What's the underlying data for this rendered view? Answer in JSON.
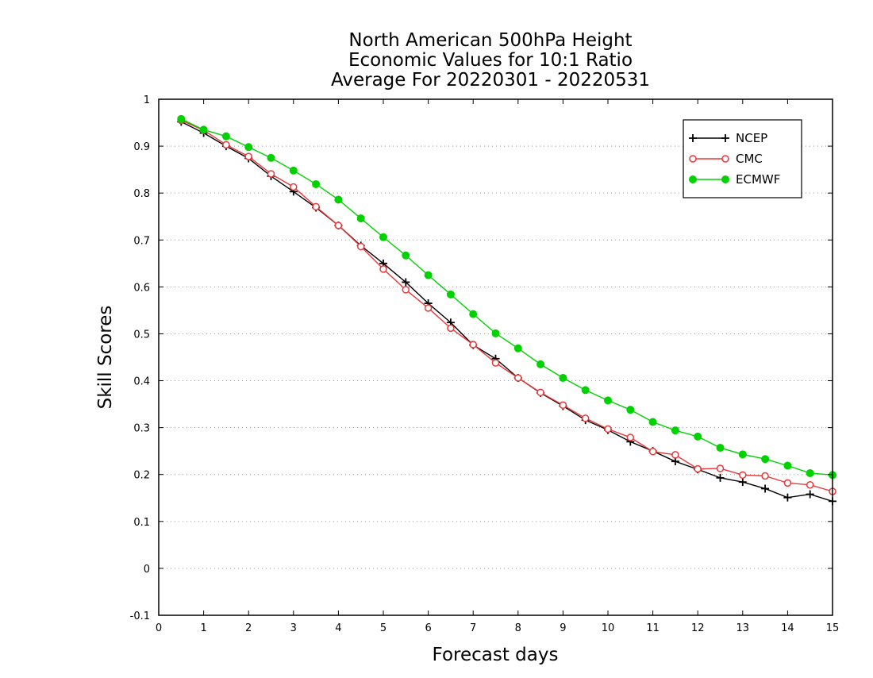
{
  "chart_data": {
    "type": "line",
    "title": [
      "North American 500hPa Height",
      "Economic Values for 10:1 Ratio",
      "Average For 20220301 - 20220531"
    ],
    "xlabel": "Forecast days",
    "ylabel": "Skill Scores",
    "xlim": [
      0,
      15
    ],
    "ylim": [
      -0.1,
      1
    ],
    "xticks": [
      0,
      1,
      2,
      3,
      4,
      5,
      6,
      7,
      8,
      9,
      10,
      11,
      12,
      13,
      14,
      15
    ],
    "yticks": [
      -0.1,
      0,
      0.1,
      0.2,
      0.3,
      0.4,
      0.5,
      0.6,
      0.7,
      0.8,
      0.9,
      1
    ],
    "ytick_labels": [
      "-0.1",
      "0",
      "0.1",
      "0.2",
      "0.3",
      "0.4",
      "0.5",
      "0.6",
      "0.7",
      "0.8",
      "0.9",
      "1"
    ],
    "grid": "horizontal dotted",
    "legend_position": "top-right",
    "x": [
      0.5,
      1,
      1.5,
      2,
      2.5,
      3,
      3.5,
      4,
      4.5,
      5,
      5.5,
      6,
      6.5,
      7,
      7.5,
      8,
      8.5,
      9,
      9.5,
      10,
      10.5,
      11,
      11.5,
      12,
      12.5,
      13,
      13.5,
      14,
      14.5,
      15
    ],
    "series": [
      {
        "name": "NCEP",
        "color": "#000000",
        "marker": "plus",
        "values": [
          0.952,
          0.928,
          0.9,
          0.874,
          0.836,
          0.803,
          0.769,
          0.731,
          0.688,
          0.65,
          0.61,
          0.565,
          0.524,
          0.476,
          0.447,
          0.406,
          0.374,
          0.346,
          0.316,
          0.295,
          0.27,
          0.25,
          0.228,
          0.211,
          0.193,
          0.184,
          0.17,
          0.151,
          0.158,
          0.143
        ]
      },
      {
        "name": "CMC",
        "color": "#e8383a",
        "marker": "open-circle",
        "values": [
          0.955,
          0.934,
          0.903,
          0.878,
          0.841,
          0.813,
          0.771,
          0.731,
          0.686,
          0.638,
          0.594,
          0.555,
          0.512,
          0.477,
          0.438,
          0.406,
          0.375,
          0.348,
          0.32,
          0.297,
          0.279,
          0.249,
          0.242,
          0.212,
          0.213,
          0.199,
          0.197,
          0.182,
          0.178,
          0.164
        ]
      },
      {
        "name": "ECMWF",
        "color": "#00d200",
        "marker": "filled-circle",
        "values": [
          0.958,
          0.935,
          0.921,
          0.898,
          0.875,
          0.848,
          0.819,
          0.786,
          0.746,
          0.706,
          0.667,
          0.625,
          0.584,
          0.542,
          0.501,
          0.469,
          0.435,
          0.406,
          0.38,
          0.358,
          0.338,
          0.312,
          0.294,
          0.281,
          0.257,
          0.243,
          0.233,
          0.219,
          0.203,
          0.199
        ]
      }
    ]
  }
}
